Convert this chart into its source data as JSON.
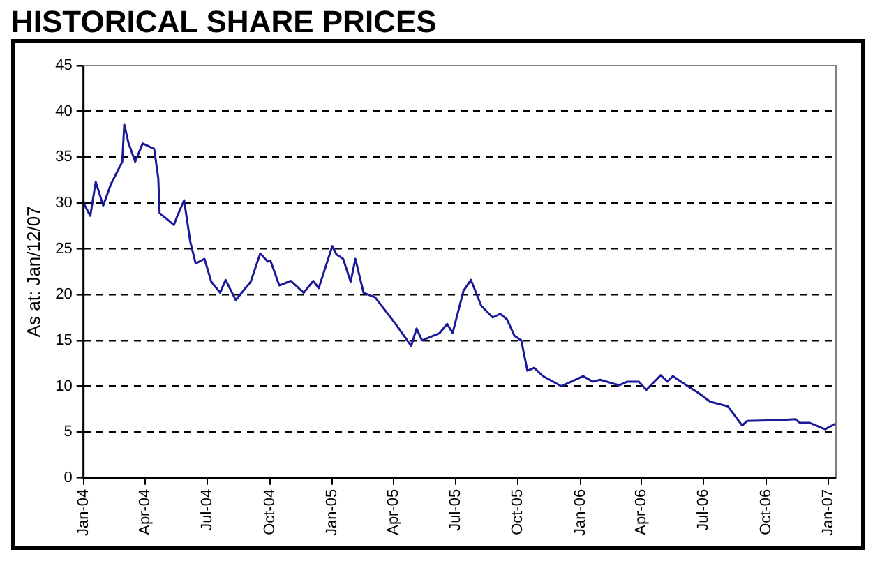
{
  "chart_data": {
    "type": "line",
    "title": "HISTORICAL SHARE PRICES",
    "ylabel": "As at: Jan/12/07",
    "x": [
      "2004-01-01",
      "2004-01-11",
      "2004-01-19",
      "2004-01-30",
      "2004-02-10",
      "2004-02-27",
      "2004-03-01",
      "2004-03-07",
      "2004-03-17",
      "2004-03-28",
      "2004-04-14",
      "2004-04-20",
      "2004-04-22",
      "2004-05-13",
      "2004-05-17",
      "2004-05-28",
      "2004-06-06",
      "2004-06-14",
      "2004-06-27",
      "2004-07-07",
      "2004-07-20",
      "2004-07-28",
      "2004-08-12",
      "2004-09-03",
      "2004-09-17",
      "2004-09-28",
      "2004-10-02",
      "2004-10-15",
      "2004-11-01",
      "2004-11-20",
      "2004-12-04",
      "2004-12-12",
      "2005-01-01",
      "2005-01-07",
      "2005-01-17",
      "2005-01-28",
      "2005-02-04",
      "2005-02-16",
      "2005-03-05",
      "2005-04-04",
      "2005-04-27",
      "2005-05-05",
      "2005-05-13",
      "2005-06-08",
      "2005-06-19",
      "2005-06-27",
      "2005-07-13",
      "2005-07-24",
      "2005-08-08",
      "2005-08-25",
      "2005-09-05",
      "2005-09-15",
      "2005-09-26",
      "2005-10-06",
      "2005-10-15",
      "2005-10-25",
      "2005-11-07",
      "2005-12-04",
      "2006-01-05",
      "2006-01-19",
      "2006-01-30",
      "2006-02-27",
      "2006-03-11",
      "2006-03-28",
      "2006-04-08",
      "2006-04-29",
      "2006-05-09",
      "2006-05-17",
      "2006-06-08",
      "2006-06-25",
      "2006-07-11",
      "2006-08-06",
      "2006-08-27",
      "2006-09-03",
      "2006-10-23",
      "2006-11-13",
      "2006-11-20",
      "2006-12-04",
      "2006-12-27",
      "2007-01-11"
    ],
    "series": [
      {
        "color": "#1a1a99",
        "values": [
          30,
          28.6,
          32.3,
          29.7,
          32,
          34.5,
          38.6,
          36.6,
          34.5,
          36.5,
          35.9,
          32.7,
          28.9,
          27.6,
          28.4,
          30.3,
          25.8,
          23.4,
          23.9,
          21.4,
          20.2,
          21.6,
          19.4,
          21.4,
          24.5,
          23.6,
          23.7,
          21,
          21.5,
          20.2,
          21.5,
          20.7,
          25.3,
          24.4,
          23.9,
          21.4,
          23.9,
          20.2,
          19.7,
          16.8,
          14.4,
          16.3,
          15,
          15.8,
          16.8,
          15.8,
          20.4,
          21.6,
          18.8,
          17.5,
          17.9,
          17.3,
          15.5,
          15,
          11.7,
          12,
          11.1,
          10,
          11.1,
          10.5,
          10.7,
          10.1,
          10.5,
          10.5,
          9.6,
          11.2,
          10.5,
          11.1,
          10,
          9.2,
          8.3,
          7.8,
          5.7,
          6.2,
          6.3,
          6.4,
          6,
          6,
          5.3,
          5.9
        ]
      }
    ],
    "xlim": [
      "2004-01-01",
      "2007-01-12"
    ],
    "xticks": [
      {
        "value": "2004-01-01",
        "label": "Jan-04"
      },
      {
        "value": "2004-04-01",
        "label": "Apr-04"
      },
      {
        "value": "2004-07-01",
        "label": "Jul-04"
      },
      {
        "value": "2004-10-01",
        "label": "Oct-04"
      },
      {
        "value": "2005-01-01",
        "label": "Jan-05"
      },
      {
        "value": "2005-04-01",
        "label": "Apr-05"
      },
      {
        "value": "2005-07-01",
        "label": "Jul-05"
      },
      {
        "value": "2005-10-01",
        "label": "Oct-05"
      },
      {
        "value": "2006-01-01",
        "label": "Jan-06"
      },
      {
        "value": "2006-04-01",
        "label": "Apr-06"
      },
      {
        "value": "2006-07-01",
        "label": "Jul-06"
      },
      {
        "value": "2006-10-01",
        "label": "Oct-06"
      },
      {
        "value": "2007-01-01",
        "label": "Jan-07"
      }
    ],
    "ylim": [
      0,
      45
    ],
    "yticks": [
      0,
      5,
      10,
      15,
      20,
      25,
      30,
      35,
      40,
      45
    ],
    "grid": "y",
    "legend": false,
    "marker": "none",
    "line_style": "solid"
  }
}
